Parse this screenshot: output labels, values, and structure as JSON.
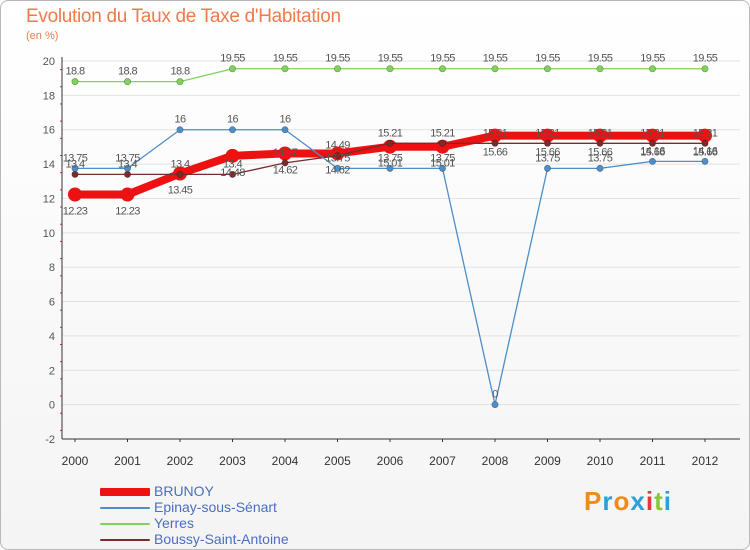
{
  "chart_data": {
    "type": "line",
    "title": "Evolution du Taux de Taxe d'Habitation",
    "ylabel": "(en %)",
    "xlabel": "",
    "ylim": [
      -2,
      20
    ],
    "yticks": [
      -2,
      0,
      2,
      4,
      6,
      8,
      10,
      12,
      14,
      16,
      18,
      20
    ],
    "categories": [
      "2000",
      "2001",
      "2002",
      "2003",
      "2004",
      "2005",
      "2006",
      "2007",
      "2008",
      "2009",
      "2010",
      "2011",
      "2012"
    ],
    "series": [
      {
        "name": "BRUNOY",
        "color": "#ee1111",
        "values": [
          12.23,
          12.23,
          13.45,
          14.48,
          14.62,
          14.62,
          15.01,
          15.01,
          15.66,
          15.66,
          15.66,
          15.66,
          15.66
        ],
        "labels": [
          "12.23",
          "12.23",
          "13.45",
          "14.48",
          "14.62",
          "14.62",
          "15.01",
          "15.01",
          "15.66",
          "15.66",
          "15.66",
          "15.66",
          "15.66"
        ]
      },
      {
        "name": "Epinay-sous-Sénart",
        "color": "#4d8ec8",
        "values": [
          13.75,
          13.75,
          16,
          16,
          16,
          13.75,
          13.75,
          13.75,
          0,
          13.75,
          13.75,
          14.16,
          14.16
        ],
        "labels": [
          "13.75",
          "13.75",
          "16",
          "16",
          "16",
          "13.75",
          "13.75",
          "13.75",
          "0",
          "13.75",
          "13.75",
          "14.16",
          "14.16"
        ]
      },
      {
        "name": "Yerres",
        "color": "#7fd35a",
        "values": [
          18.8,
          18.8,
          18.8,
          19.55,
          19.55,
          19.55,
          19.55,
          19.55,
          19.55,
          19.55,
          19.55,
          19.55,
          19.55
        ],
        "labels": [
          "18.8",
          "18.8",
          "18.8",
          "19.55",
          "19.55",
          "19.55",
          "19.55",
          "19.55",
          "19.55",
          "19.55",
          "19.55",
          "19.55",
          "19.55"
        ]
      },
      {
        "name": "Boussy-Saint-Antoine",
        "color": "#7a2b2b",
        "values": [
          13.4,
          13.4,
          13.4,
          13.4,
          14.07,
          14.49,
          15.21,
          15.21,
          15.21,
          15.21,
          15.21,
          15.21,
          15.21
        ],
        "labels": [
          "13.4",
          "13.4",
          "13.4",
          "13.4",
          "14.07",
          "14.49",
          "15.21",
          "15.21",
          "15.21",
          "15.21",
          "15.21",
          "15.21",
          "15.21"
        ]
      }
    ]
  },
  "logo": {
    "letters": [
      {
        "ch": "P",
        "color": "#f08a1c"
      },
      {
        "ch": "r",
        "color": "#2e9fd8"
      },
      {
        "ch": "o",
        "color": "#f08a1c"
      },
      {
        "ch": "x",
        "color": "#2e9fd8"
      },
      {
        "ch": "i",
        "color": "#e13b3b"
      },
      {
        "ch": "t",
        "color": "#8cc63f"
      },
      {
        "ch": "i",
        "color": "#2e9fd8"
      }
    ]
  }
}
